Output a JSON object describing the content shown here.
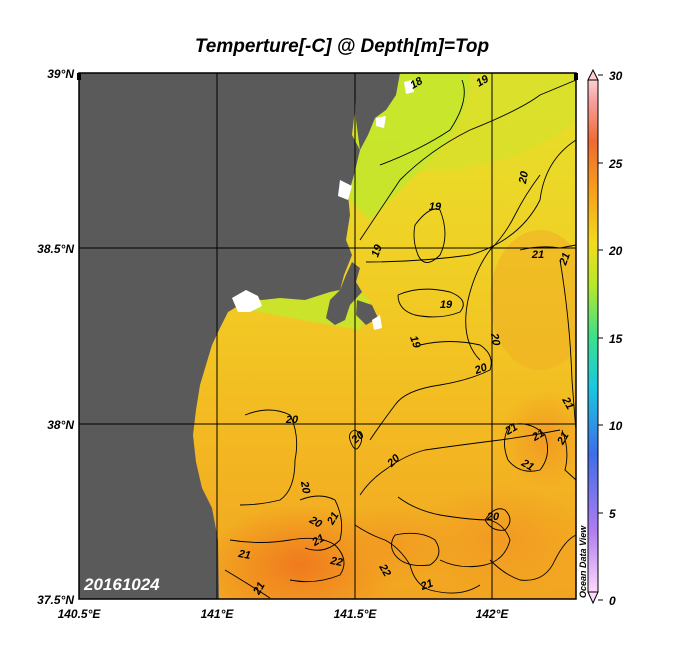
{
  "title": "Temperture[-C] @ Depth[m]=Top",
  "date_label": "20161024",
  "watermark": "Ocean Data View",
  "map": {
    "lon_ticks": [
      "140.5°E",
      "141°E",
      "141.5°E",
      "142°E"
    ],
    "lat_ticks": [
      "39°N",
      "38.5°N",
      "38°N",
      "37.5°N"
    ],
    "land_color": "#5a5a5a",
    "coast_white": "#ffffff"
  },
  "colorbar": {
    "ticks": [
      "30",
      "25",
      "20",
      "15",
      "10",
      "5",
      "0"
    ],
    "min": 0,
    "max": 30
  },
  "contour_labels": [
    {
      "text": "18"
    },
    {
      "text": "19"
    },
    {
      "text": "19"
    },
    {
      "text": "19"
    },
    {
      "text": "19"
    },
    {
      "text": "19"
    },
    {
      "text": "20"
    },
    {
      "text": "20"
    },
    {
      "text": "20"
    },
    {
      "text": "20"
    },
    {
      "text": "20"
    },
    {
      "text": "20"
    },
    {
      "text": "20"
    },
    {
      "text": "20"
    },
    {
      "text": "20"
    },
    {
      "text": "21"
    },
    {
      "text": "21"
    },
    {
      "text": "21"
    },
    {
      "text": "21"
    },
    {
      "text": "21"
    },
    {
      "text": "21"
    },
    {
      "text": "21"
    },
    {
      "text": "21"
    },
    {
      "text": "21"
    },
    {
      "text": "21"
    },
    {
      "text": "21"
    },
    {
      "text": "21"
    },
    {
      "text": "22"
    },
    {
      "text": "22"
    },
    {
      "text": "22"
    }
  ]
}
